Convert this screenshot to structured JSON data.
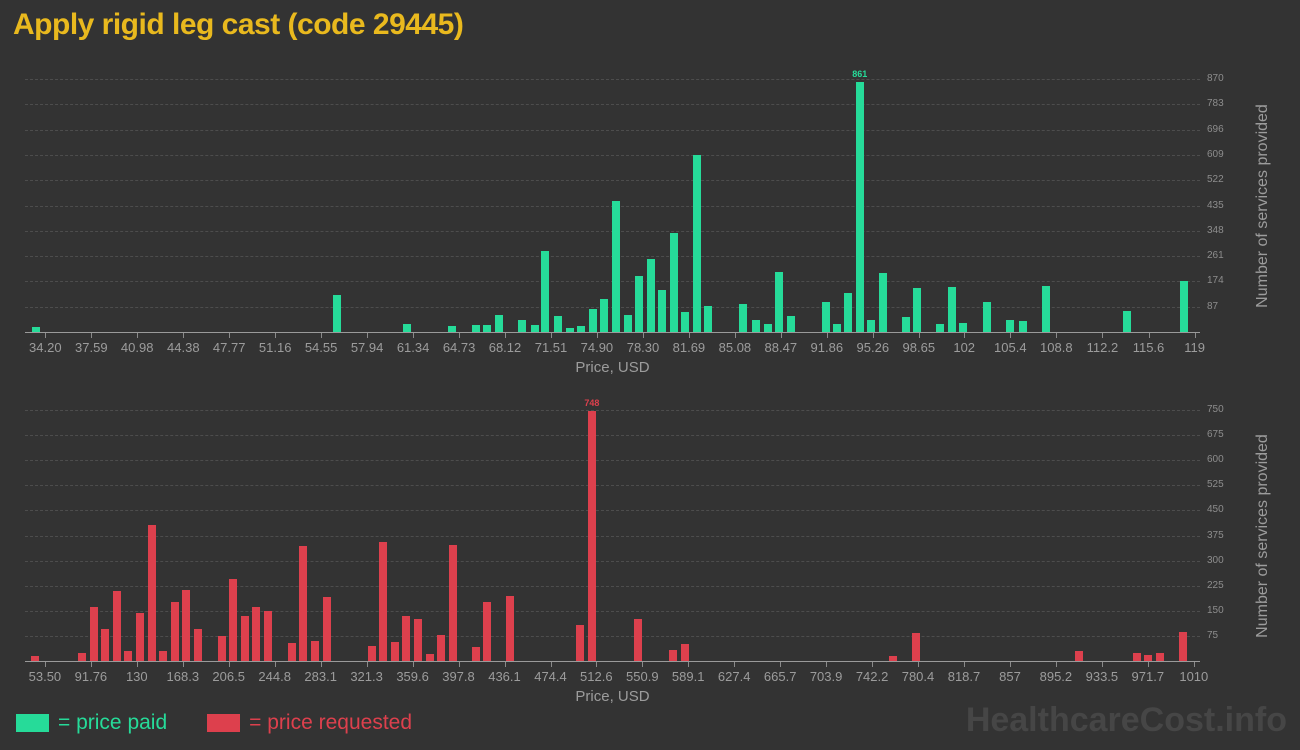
{
  "title": "Apply rigid leg cast (code 29445)",
  "watermark": "HealthcareCost.info",
  "legend": {
    "paid": "= price paid",
    "requested": "= price requested"
  },
  "colors": {
    "background": "#333333",
    "paid": "#26db99",
    "requested": "#dd404d",
    "title": "#e9b91e",
    "gridline": "#4d4d4d",
    "axis_line": "#9a9a9a",
    "x_tick_label": "#9c9c9c",
    "y_tick_label": "#8d8d8d",
    "axis_title": "#9c9c9c",
    "watermark": "#464646"
  },
  "chart_data": [
    {
      "type": "bar",
      "series": "price paid",
      "color": "#26db99",
      "xlabel": "Price, USD",
      "ylabel": "Number of services provided",
      "x_ticks": [
        "34.20",
        "37.59",
        "40.98",
        "44.38",
        "47.77",
        "51.16",
        "54.55",
        "57.94",
        "61.34",
        "64.73",
        "68.12",
        "71.51",
        "74.90",
        "78.30",
        "81.69",
        "85.08",
        "88.47",
        "91.86",
        "95.26",
        "98.65",
        "102",
        "105.4",
        "108.8",
        "112.2",
        "115.6",
        "119"
      ],
      "y_ticks": [
        87,
        174,
        261,
        348,
        435,
        522,
        609,
        696,
        783,
        870
      ],
      "xlim": [
        32.7,
        119.4
      ],
      "ylim": [
        0,
        870
      ],
      "grid": true,
      "legend_position": "bottom",
      "peak_label": "861",
      "points": [
        [
          33.5,
          17
        ],
        [
          55.7,
          126
        ],
        [
          60.9,
          27
        ],
        [
          64.2,
          21
        ],
        [
          66.0,
          24
        ],
        [
          66.8,
          24
        ],
        [
          67.7,
          59
        ],
        [
          69.4,
          43
        ],
        [
          70.3,
          24
        ],
        [
          71.1,
          278
        ],
        [
          72.0,
          55
        ],
        [
          72.9,
          15
        ],
        [
          73.7,
          20
        ],
        [
          74.6,
          79
        ],
        [
          75.4,
          112
        ],
        [
          76.3,
          449
        ],
        [
          77.2,
          58
        ],
        [
          78.0,
          193
        ],
        [
          78.9,
          251
        ],
        [
          79.7,
          144
        ],
        [
          80.6,
          341
        ],
        [
          81.4,
          68
        ],
        [
          82.3,
          608
        ],
        [
          83.1,
          90
        ],
        [
          85.7,
          95
        ],
        [
          86.6,
          42
        ],
        [
          87.5,
          27
        ],
        [
          88.3,
          206
        ],
        [
          89.2,
          55
        ],
        [
          91.8,
          102
        ],
        [
          92.6,
          28
        ],
        [
          93.4,
          136
        ],
        [
          94.3,
          861
        ],
        [
          95.1,
          43
        ],
        [
          96.0,
          203
        ],
        [
          97.7,
          53
        ],
        [
          98.5,
          152
        ],
        [
          100.2,
          28
        ],
        [
          101.1,
          156
        ],
        [
          101.9,
          31
        ],
        [
          103.7,
          103
        ],
        [
          105.4,
          43
        ],
        [
          106.3,
          37
        ],
        [
          108.0,
          158
        ],
        [
          114.0,
          72
        ],
        [
          118.2,
          175
        ]
      ]
    },
    {
      "type": "bar",
      "series": "price requested",
      "color": "#dd404d",
      "xlabel": "Price, USD",
      "ylabel": "Number of services provided",
      "x_ticks": [
        "53.50",
        "91.76",
        "130",
        "168.3",
        "206.5",
        "244.8",
        "283.1",
        "321.3",
        "359.6",
        "397.8",
        "436.1",
        "474.4",
        "512.6",
        "550.9",
        "589.1",
        "627.4",
        "665.7",
        "703.9",
        "742.2",
        "780.4",
        "818.7",
        "857",
        "895.2",
        "933.5",
        "971.7",
        "1010"
      ],
      "y_ticks": [
        75,
        150,
        225,
        300,
        375,
        450,
        525,
        600,
        675,
        750
      ],
      "xlim": [
        36.9,
        1015.2
      ],
      "ylim": [
        0,
        750
      ],
      "grid": true,
      "legend_position": "bottom",
      "peak_label": "748",
      "points": [
        [
          45.6,
          16
        ],
        [
          84.3,
          24
        ],
        [
          93.9,
          162
        ],
        [
          103.5,
          96
        ],
        [
          113.4,
          210
        ],
        [
          123.0,
          30
        ],
        [
          132.6,
          143
        ],
        [
          142.6,
          408
        ],
        [
          151.7,
          30
        ],
        [
          161.7,
          175
        ],
        [
          171.3,
          213
        ],
        [
          180.9,
          97
        ],
        [
          200.8,
          74
        ],
        [
          210.4,
          244
        ],
        [
          220.0,
          135
        ],
        [
          229.6,
          161
        ],
        [
          239.1,
          149
        ],
        [
          259.1,
          55
        ],
        [
          268.3,
          344
        ],
        [
          278.2,
          59
        ],
        [
          288.2,
          191
        ],
        [
          325.7,
          44
        ],
        [
          334.8,
          357
        ],
        [
          344.8,
          56
        ],
        [
          354.4,
          135
        ],
        [
          364.0,
          127
        ],
        [
          374.0,
          22
        ],
        [
          383.5,
          77
        ],
        [
          393.1,
          347
        ],
        [
          412.3,
          41
        ],
        [
          421.8,
          176
        ],
        [
          441.0,
          195
        ],
        [
          498.9,
          107
        ],
        [
          508.9,
          748
        ],
        [
          547.6,
          126
        ],
        [
          576.3,
          32
        ],
        [
          586.3,
          50
        ],
        [
          759.5,
          16
        ],
        [
          779.1,
          85
        ],
        [
          914.4,
          30
        ],
        [
          963.1,
          25
        ],
        [
          971.8,
          17
        ],
        [
          981.8,
          23
        ],
        [
          1001.4,
          87
        ]
      ]
    }
  ]
}
